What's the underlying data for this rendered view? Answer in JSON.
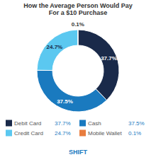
{
  "chart_data": {
    "type": "pie",
    "title": "How the Average Person Would Pay\nFor a $10 Purchase",
    "categories": [
      "Debit Card",
      "Cash",
      "Credit Card",
      "Mobile Wallet"
    ],
    "values": [
      37.7,
      37.5,
      24.7,
      0.1
    ],
    "value_labels": [
      "37.7%",
      "37.5%",
      "24.7%",
      "0.1%"
    ],
    "colors": [
      "#1a2a4a",
      "#1a7abf",
      "#5bc8f0",
      "#e87d3e"
    ],
    "data_labels": true,
    "legend": "bottom",
    "annotations": [
      "SHIFT"
    ]
  }
}
